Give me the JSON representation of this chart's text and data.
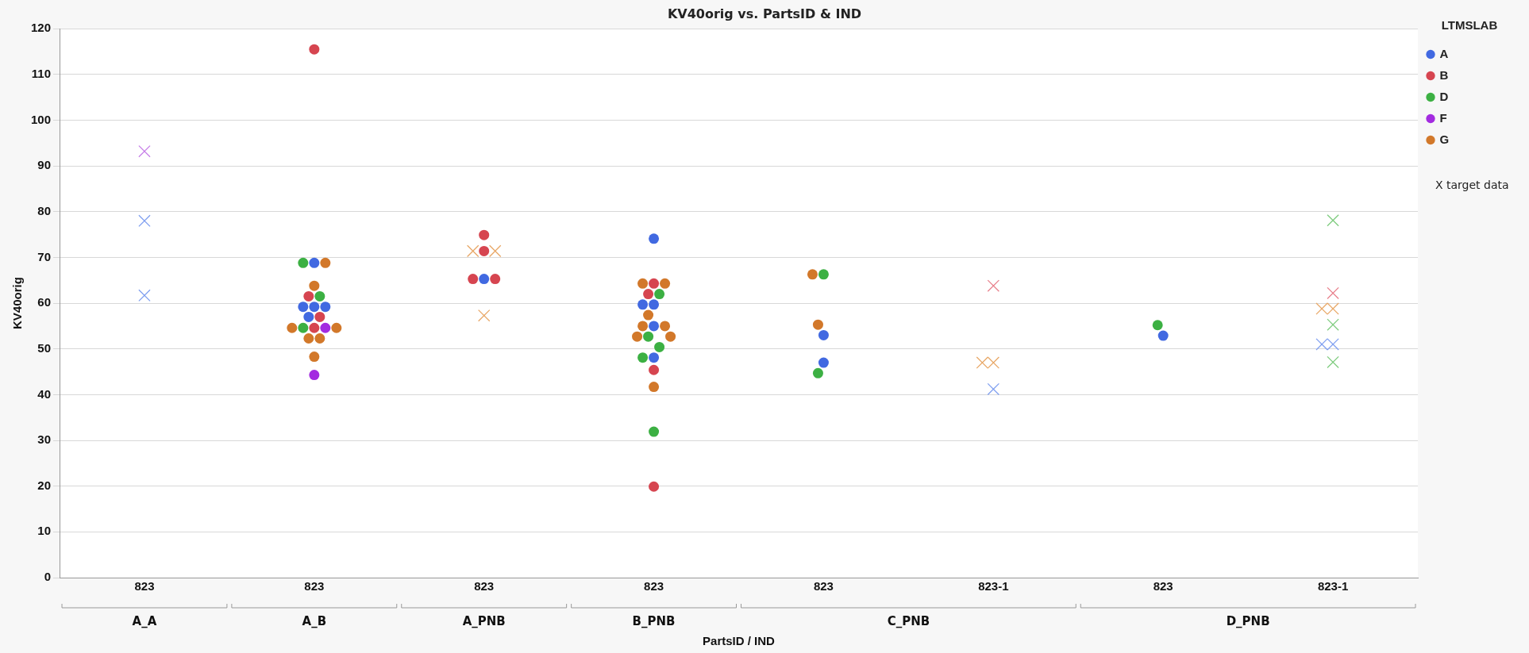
{
  "chart_data": {
    "type": "scatter",
    "title": "KV40orig vs. PartsID & IND",
    "xlabel": "PartsID / IND",
    "ylabel": "KV40orig",
    "legend_title": "LTMSLAB",
    "categories": [
      "823",
      "823",
      "823",
      "823",
      "823",
      "823-1",
      "823",
      "823-1"
    ],
    "series": [
      {
        "name": "A",
        "color": "#4169e1",
        "marker": "circle",
        "values": [
          null,
          68.8,
          65.3,
          74.1,
          53,
          null,
          52.9,
          null
        ]
      },
      {
        "color": "#4169e1",
        "marker": "circle",
        "values": [
          null,
          59.2,
          null,
          59.7,
          47,
          null,
          null,
          null
        ]
      },
      {
        "color": "#4169e1",
        "marker": "circle",
        "values": [
          null,
          59.2,
          null,
          59.7,
          null,
          null,
          null,
          null
        ]
      },
      {
        "color": "#4169e1",
        "marker": "circle",
        "values": [
          null,
          59.2,
          null,
          55,
          null,
          null,
          null,
          null
        ]
      },
      {
        "color": "#4169e1",
        "marker": "circle",
        "values": [
          null,
          57,
          null,
          48.1,
          null,
          null,
          null,
          null
        ]
      },
      {
        "name": "B",
        "color": "#d64550",
        "marker": "circle",
        "values": [
          null,
          115.5,
          74.9,
          64.3,
          null,
          null,
          null,
          null
        ]
      },
      {
        "color": "#d64550",
        "marker": "circle",
        "values": [
          null,
          61.5,
          71.4,
          62,
          null,
          null,
          null,
          null
        ]
      },
      {
        "color": "#d64550",
        "marker": "circle",
        "values": [
          null,
          57,
          65.3,
          45.4,
          null,
          null,
          null,
          null
        ]
      },
      {
        "color": "#d64550",
        "marker": "circle",
        "values": [
          null,
          54.6,
          65.3,
          19.9,
          null,
          null,
          null,
          null
        ]
      },
      {
        "name": "D",
        "color": "#3cb043",
        "marker": "circle",
        "values": [
          null,
          68.8,
          null,
          62,
          66.3,
          null,
          55.2,
          null
        ]
      },
      {
        "color": "#3cb043",
        "marker": "circle",
        "values": [
          null,
          61.5,
          null,
          52.7,
          44.7,
          null,
          null,
          null
        ]
      },
      {
        "color": "#3cb043",
        "marker": "circle",
        "values": [
          null,
          54.6,
          null,
          50.4,
          null,
          null,
          null,
          null
        ]
      },
      {
        "color": "#3cb043",
        "marker": "circle",
        "values": [
          null,
          null,
          null,
          48.1,
          null,
          null,
          null,
          null
        ]
      },
      {
        "color": "#3cb043",
        "marker": "circle",
        "values": [
          null,
          null,
          null,
          31.9,
          null,
          null,
          null,
          null
        ]
      },
      {
        "name": "F",
        "color": "#a32be0",
        "marker": "circle",
        "values": [
          null,
          54.6,
          null,
          null,
          null,
          null,
          null,
          null
        ]
      },
      {
        "color": "#a32be0",
        "marker": "circle",
        "values": [
          null,
          44.3,
          null,
          null,
          null,
          null,
          null,
          null
        ]
      },
      {
        "name": "G",
        "color": "#d2782a",
        "marker": "circle",
        "values": [
          null,
          68.8,
          null,
          64.3,
          66.3,
          null,
          null,
          null
        ]
      },
      {
        "color": "#d2782a",
        "marker": "circle",
        "values": [
          null,
          63.8,
          null,
          64.3,
          55.3,
          null,
          null,
          null
        ]
      },
      {
        "color": "#d2782a",
        "marker": "circle",
        "values": [
          null,
          54.6,
          null,
          57.4,
          null,
          null,
          null,
          null
        ]
      },
      {
        "color": "#d2782a",
        "marker": "circle",
        "values": [
          null,
          54.6,
          null,
          55,
          null,
          null,
          null,
          null
        ]
      },
      {
        "color": "#d2782a",
        "marker": "circle",
        "values": [
          null,
          52.3,
          null,
          55,
          null,
          null,
          null,
          null
        ]
      },
      {
        "color": "#d2782a",
        "marker": "circle",
        "values": [
          null,
          52.3,
          null,
          52.7,
          null,
          null,
          null,
          null
        ]
      },
      {
        "color": "#d2782a",
        "marker": "circle",
        "values": [
          null,
          48.3,
          null,
          52.7,
          null,
          null,
          null,
          null
        ]
      },
      {
        "color": "#d2782a",
        "marker": "circle",
        "values": [
          null,
          null,
          null,
          41.7,
          null,
          null,
          null,
          null
        ]
      },
      {
        "color": "#7f9ff0",
        "marker": "cross",
        "values": [
          78,
          null,
          null,
          null,
          null,
          41.2,
          null,
          51
        ]
      },
      {
        "color": "#7f9ff0",
        "marker": "cross",
        "values": [
          61.7,
          null,
          null,
          null,
          null,
          null,
          null,
          51
        ]
      },
      {
        "color": "#e8808c",
        "marker": "cross",
        "values": [
          null,
          null,
          null,
          null,
          null,
          63.8,
          null,
          62.2
        ]
      },
      {
        "color": "#7fcc7f",
        "marker": "cross",
        "values": [
          null,
          null,
          null,
          null,
          null,
          null,
          null,
          78.1
        ]
      },
      {
        "color": "#7fcc7f",
        "marker": "cross",
        "values": [
          null,
          null,
          null,
          null,
          null,
          null,
          null,
          55.3
        ]
      },
      {
        "color": "#7fcc7f",
        "marker": "cross",
        "values": [
          null,
          null,
          null,
          null,
          null,
          null,
          null,
          47.1
        ]
      },
      {
        "color": "#c77fe8",
        "marker": "cross",
        "values": [
          93.2,
          null,
          null,
          null,
          null,
          null,
          null,
          null
        ]
      },
      {
        "color": "#e8a766",
        "marker": "cross",
        "values": [
          null,
          null,
          71.4,
          null,
          null,
          47,
          null,
          58.8
        ]
      },
      {
        "color": "#e8a766",
        "marker": "cross",
        "values": [
          null,
          null,
          71.4,
          null,
          null,
          47,
          null,
          58.8
        ]
      },
      {
        "color": "#e8a766",
        "marker": "cross",
        "values": [
          null,
          null,
          57.3,
          null,
          null,
          null,
          null,
          null
        ]
      }
    ],
    "ylim": [
      0,
      120
    ],
    "yticks": [
      0,
      10,
      20,
      30,
      40,
      50,
      60,
      70,
      80,
      90,
      100,
      110,
      120
    ],
    "grid": "y",
    "legend": "top right",
    "annotations": [
      "A_A",
      "A_B",
      "A_PNB",
      "B_PNB",
      "C_PNB",
      "D_PNB",
      "X target data"
    ]
  }
}
